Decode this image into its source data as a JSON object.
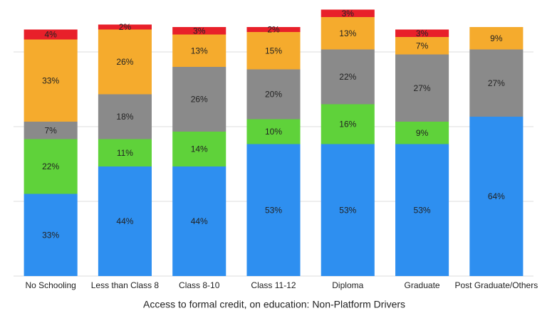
{
  "chart_data": {
    "type": "stacked_bar",
    "xlabel": "Access to formal credit, on education: Non-Platform Drivers",
    "categories": [
      "No Schooling",
      "Less than Class 8",
      "Class 8-10",
      "Class 11-12",
      "Diploma",
      "Graduate",
      "Post Graduate/Others"
    ],
    "series": [
      {
        "color": "#2e8ff0",
        "values": [
          33,
          44,
          44,
          53,
          53,
          53,
          64
        ],
        "value_labels": [
          "33%",
          "44%",
          "44%",
          "53%",
          "53%",
          "53%",
          "64%"
        ]
      },
      {
        "color": "#5fd23a",
        "values": [
          22,
          11,
          14,
          10,
          16,
          9,
          null
        ],
        "value_labels": [
          "22%",
          "11%",
          "14%",
          "10%",
          "16%",
          "9%",
          null
        ]
      },
      {
        "color": "#8a8a8a",
        "values": [
          7,
          18,
          26,
          20,
          22,
          27,
          27
        ],
        "value_labels": [
          "7%",
          "18%",
          "26%",
          "20%",
          "22%",
          "27%",
          "27%"
        ]
      },
      {
        "color": "#f5ab2d",
        "values": [
          33,
          26,
          13,
          15,
          13,
          7,
          9
        ],
        "value_labels": [
          "33%",
          "26%",
          "13%",
          "15%",
          "13%",
          "7%",
          "9%"
        ]
      },
      {
        "color": "#e8202a",
        "values": [
          4,
          2,
          3,
          2,
          3,
          3,
          null
        ],
        "value_labels": [
          "4%",
          "2%",
          "3%",
          "2%",
          "3%",
          "3%",
          null
        ]
      }
    ],
    "ylim": [
      0,
      110
    ],
    "yticks": [
      0,
      30,
      60,
      90
    ],
    "grid": true
  }
}
